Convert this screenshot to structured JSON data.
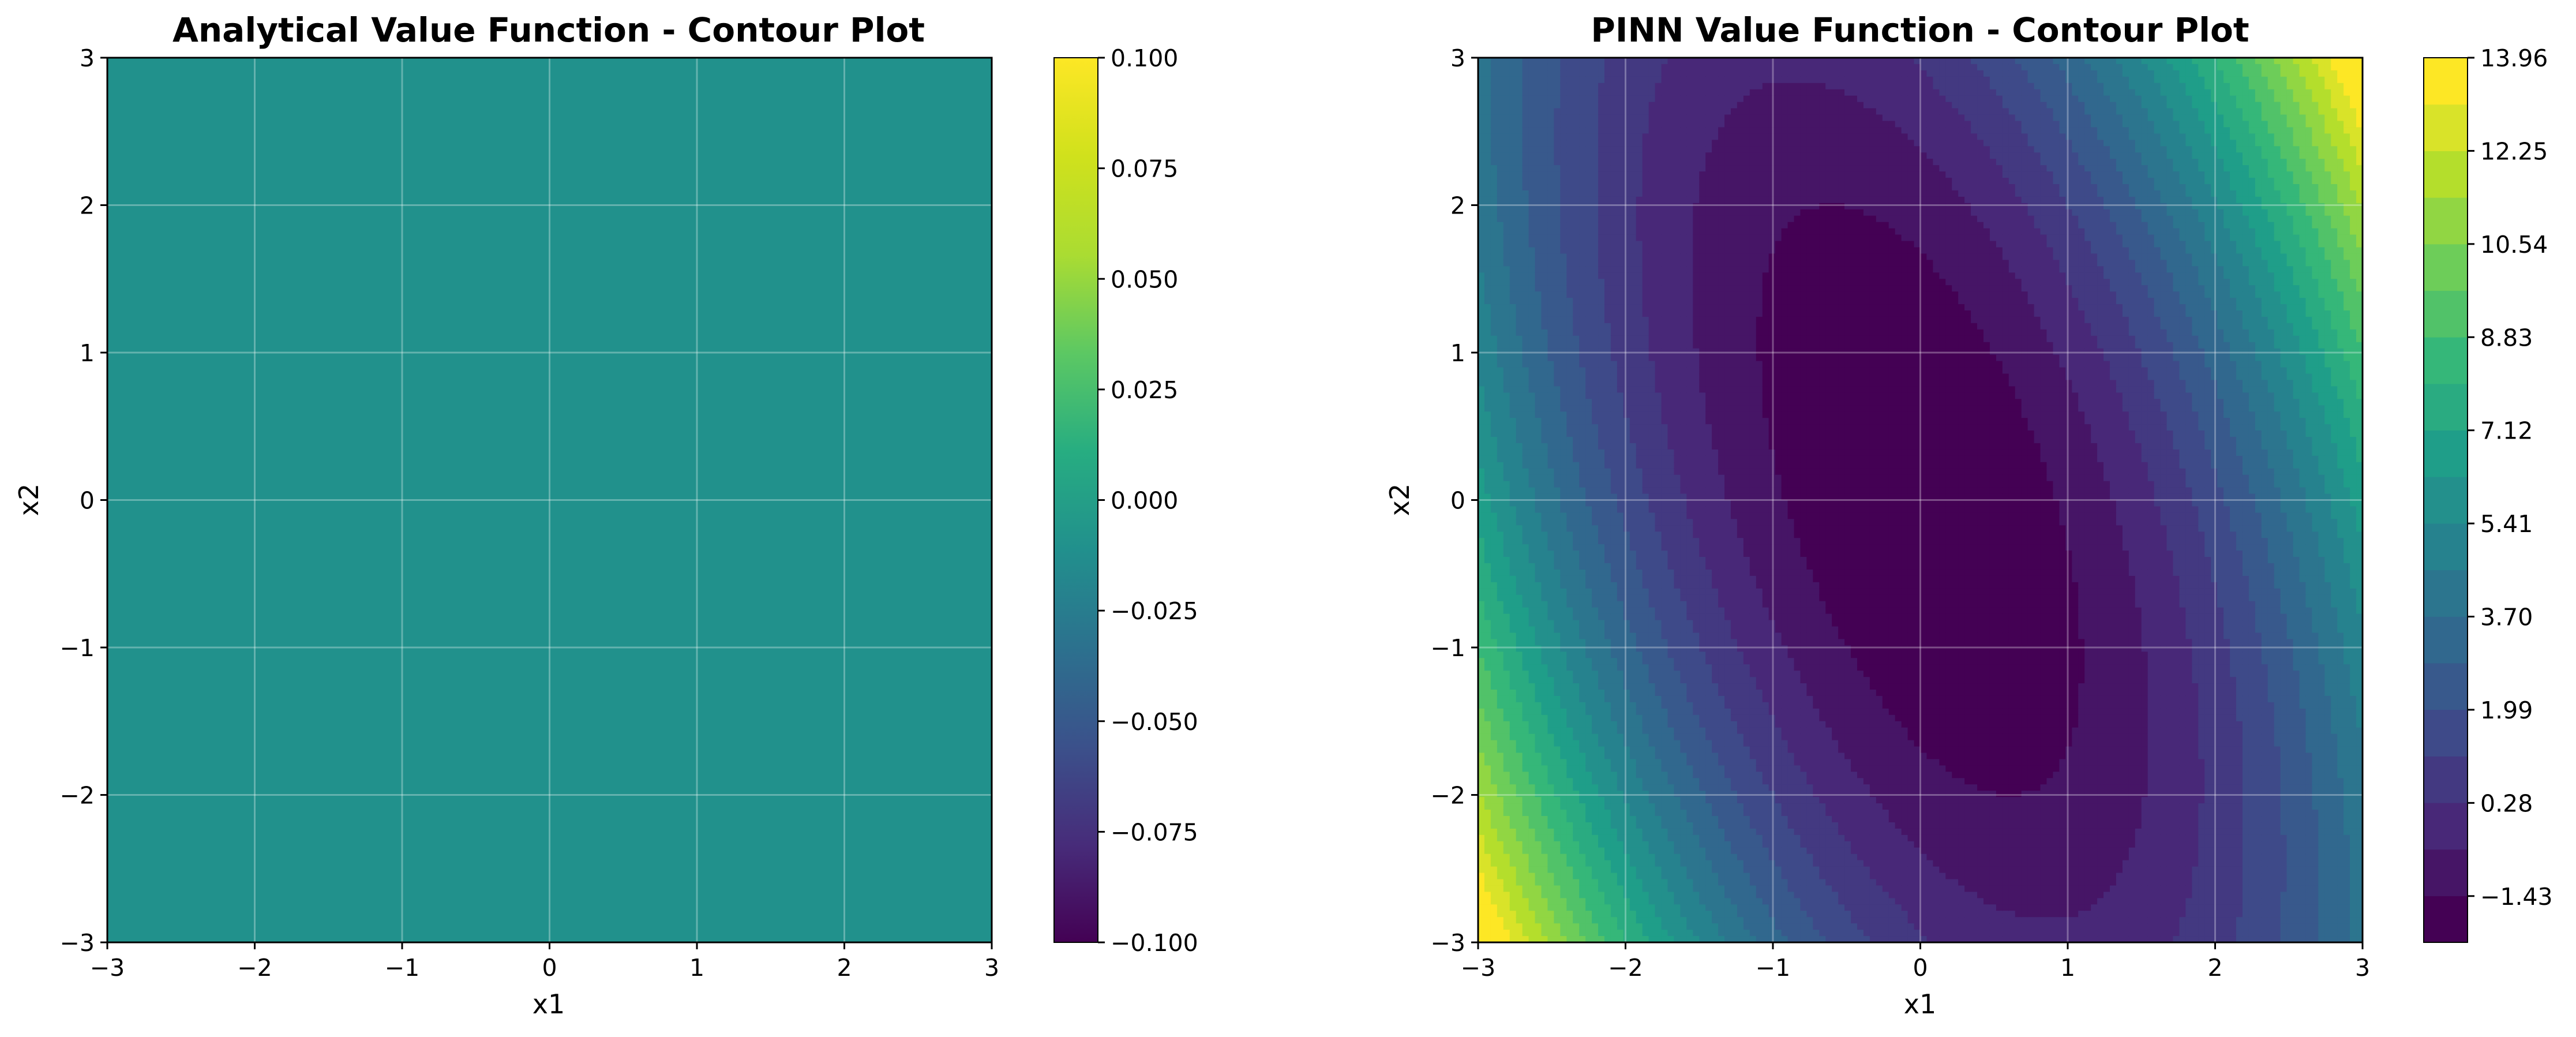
{
  "chart_data": [
    {
      "type": "contour",
      "title": "Analytical Value Function - Contour Plot",
      "xlabel": "x1",
      "ylabel": "x2",
      "xlim": [
        -3,
        3
      ],
      "ylim": [
        -3,
        3
      ],
      "xticks": [
        "−3",
        "−2",
        "−1",
        "0",
        "1",
        "2",
        "3"
      ],
      "yticks": [
        "−3",
        "−2",
        "−1",
        "0",
        "1",
        "2",
        "3"
      ],
      "grid": true,
      "field": "constant",
      "constant_value": 0.0,
      "colormap": "viridis",
      "colorbar": {
        "range": [
          -0.1,
          0.1
        ],
        "ticks": [
          -0.1,
          -0.075,
          -0.05,
          -0.025,
          0.0,
          0.025,
          0.05,
          0.075,
          0.1
        ],
        "tick_labels": [
          "−0.100",
          "−0.075",
          "−0.050",
          "−0.025",
          "0.000",
          "0.025",
          "0.050",
          "0.075",
          "0.100"
        ],
        "discrete": false
      }
    },
    {
      "type": "contour",
      "title": "PINN Value Function - Contour Plot",
      "xlabel": "x1",
      "ylabel": "x2",
      "xlim": [
        -3,
        3
      ],
      "ylim": [
        -3,
        3
      ],
      "xticks": [
        "−3",
        "−2",
        "−1",
        "0",
        "1",
        "2",
        "3"
      ],
      "yticks": [
        "−3",
        "−2",
        "−1",
        "0",
        "1",
        "2",
        "3"
      ],
      "grid": true,
      "field": "quadratic",
      "quadratic": {
        "a": 1.0,
        "b": 0.6,
        "c": 0.3,
        "d": 0.0,
        "e": 0.0,
        "f": -2.27
      },
      "colormap": "viridis",
      "colorbar": {
        "range": [
          -2.28,
          13.96
        ],
        "ticks": [
          -1.43,
          0.28,
          1.99,
          3.7,
          5.41,
          7.12,
          8.83,
          10.54,
          12.25,
          13.96
        ],
        "tick_labels": [
          "−1.43",
          "0.28",
          "1.99",
          "3.70",
          "5.41",
          "7.12",
          "8.83",
          "10.54",
          "12.25",
          "13.96"
        ],
        "discrete": true,
        "levels": 19
      }
    }
  ]
}
